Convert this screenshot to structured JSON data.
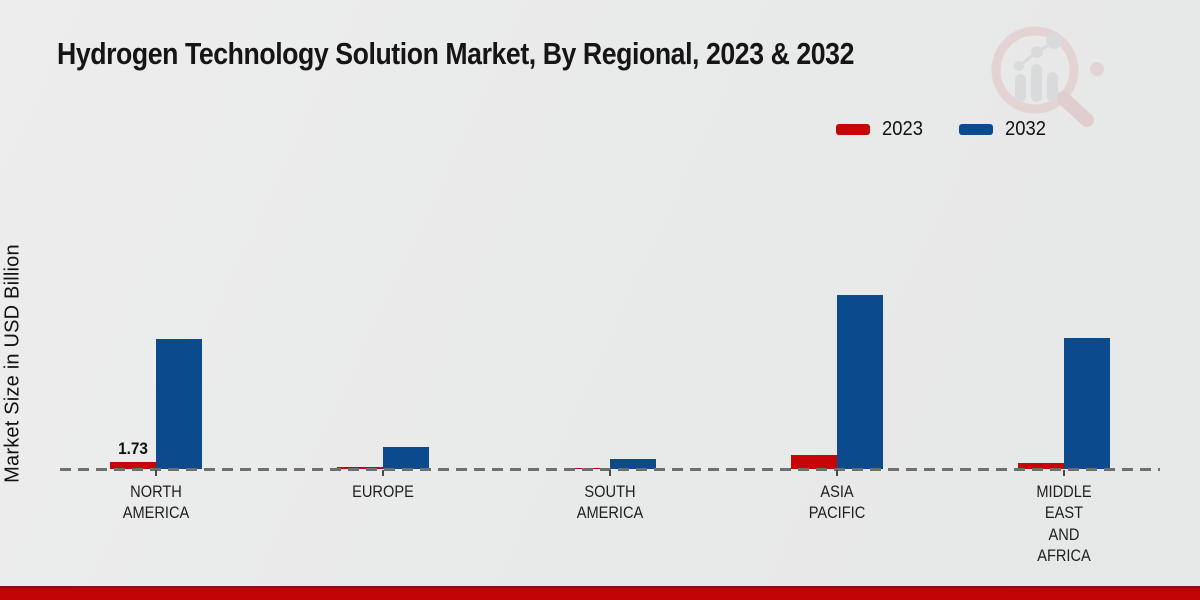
{
  "title": "Hydrogen Technology Solution Market, By Regional, 2023 & 2032",
  "y_axis_label": "Market Size in USD Billion",
  "legend": {
    "items": [
      {
        "label": "2023",
        "color": "#c60606"
      },
      {
        "label": "2032",
        "color": "#0b4a8d"
      }
    ]
  },
  "watermark": {
    "name": "market-research-magnifier-logo"
  },
  "footer": {
    "stripe_color": "#c00404",
    "stripe_edge_color": "#7e1414"
  },
  "chart_data": {
    "type": "bar",
    "title": "Hydrogen Technology Solution Market, By Regional, 2023 & 2032",
    "xlabel": "",
    "ylabel": "Market Size in USD Billion",
    "ylim": [
      0,
      50
    ],
    "grid": false,
    "legend_position": "top-right",
    "baseline_style": "dashed",
    "categories": [
      "NORTH AMERICA",
      "EUROPE",
      "SOUTH AMERICA",
      "ASIA PACIFIC",
      "MIDDLE EAST AND AFRICA"
    ],
    "category_label_lines": [
      [
        "NORTH",
        "AMERICA"
      ],
      [
        "EUROPE"
      ],
      [
        "SOUTH",
        "AMERICA"
      ],
      [
        "ASIA",
        "PACIFIC"
      ],
      [
        "MIDDLE",
        "EAST",
        "AND",
        "AFRICA"
      ]
    ],
    "series": [
      {
        "name": "2023",
        "color": "#c60606",
        "values": [
          1.73,
          0.65,
          0.25,
          3.6,
          1.6
        ]
      },
      {
        "name": "2032",
        "color": "#0b4a8d",
        "values": [
          34.6,
          5.9,
          2.7,
          46.3,
          34.9
        ]
      }
    ],
    "annotations": [
      {
        "series": "2023",
        "category": "NORTH AMERICA",
        "text": "1.73"
      }
    ]
  }
}
